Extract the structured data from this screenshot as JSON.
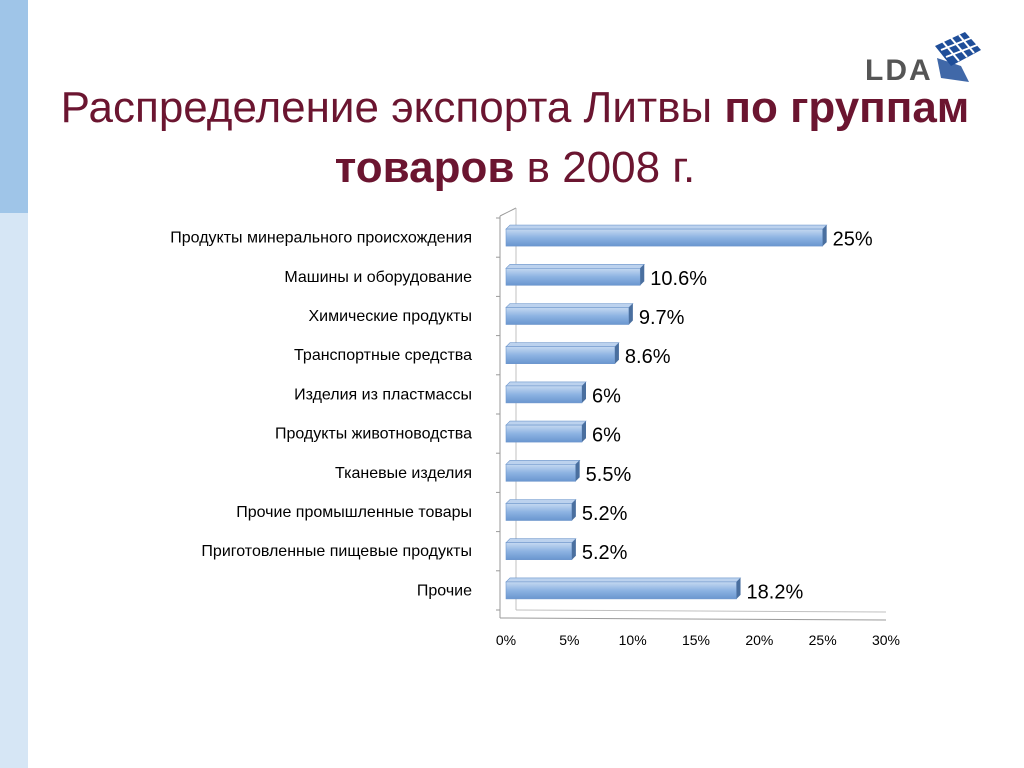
{
  "slide": {
    "title_part1": "Распределение экспорта Литвы ",
    "title_bold": "по группам товаров",
    "title_part2": " в 2008 г.",
    "logo_text": "LDA"
  },
  "colors": {
    "title": "#6b1530",
    "bar": "#8db3e2",
    "bar_edge": "#4a7ebb",
    "sidebar_light": "#d6e6f5",
    "sidebar_dark": "#9fc5e8",
    "logo_blue": "#1f4e99"
  },
  "chart_data": {
    "type": "bar",
    "orientation": "horizontal",
    "categories": [
      "Продукты минерального происхождения",
      "Машины и оборудование",
      "Химические продукты",
      "Транспортные средства",
      "Изделия из пластмассы",
      "Продукты животноводства",
      "Тканевые изделия",
      "Прочие промышленные товары",
      "Приготовленные пищевые продукты",
      "Прочие"
    ],
    "values": [
      25,
      10.6,
      9.7,
      8.6,
      6,
      6,
      5.5,
      5.2,
      5.2,
      18.2
    ],
    "data_labels": [
      "25%",
      "10.6%",
      "9.7%",
      "8.6%",
      "6%",
      "6%",
      "5.5%",
      "5.2%",
      "5.2%",
      "18.2%"
    ],
    "xlim": [
      0,
      30
    ],
    "x_ticks": [
      "0%",
      "5%",
      "10%",
      "15%",
      "20%",
      "25%",
      "30%"
    ],
    "grid": false
  }
}
